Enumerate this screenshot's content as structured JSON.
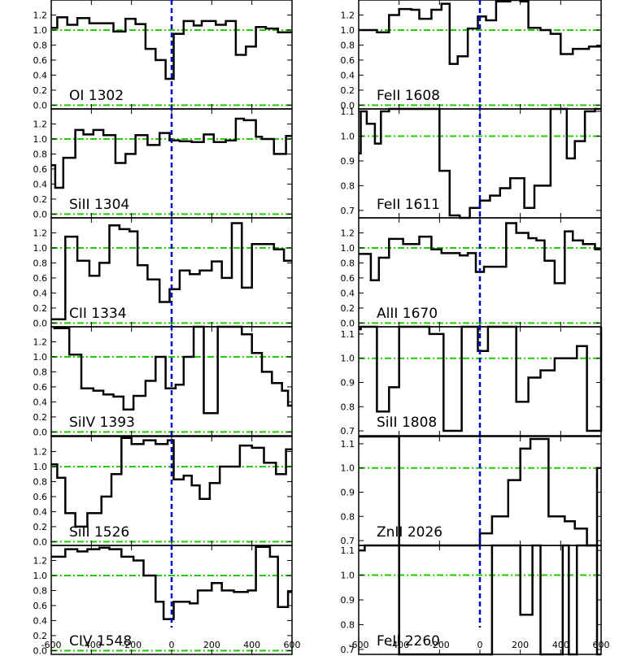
{
  "chart_data": {
    "type": "line",
    "x_tick_labels": [
      "-600",
      "-400",
      "-200",
      "0",
      "200",
      "400",
      "600"
    ],
    "xlim": [
      -600,
      600
    ],
    "x_ticks": [
      -600,
      -400,
      -200,
      0,
      200,
      400,
      600
    ],
    "continuum_level": 1.0,
    "zero_velocity": 0,
    "colors": {
      "spectrum": "#000000",
      "continuum": "#22cc00",
      "zero_velocity": "#0000cc"
    },
    "panels": [
      {
        "label": "OI 1302",
        "column": 0,
        "ylim": [
          -0.05,
          1.4
        ],
        "y_ticks": [
          0.0,
          0.2,
          0.4,
          0.6,
          0.8,
          1.0,
          1.2
        ],
        "y_tick_labels": [
          "0.0",
          "0.2",
          "0.4",
          "0.6",
          "0.8",
          "1.0",
          "1.2"
        ],
        "guides": [
          0.0,
          1.0
        ],
        "x": [
          -600,
          -570,
          -520,
          -470,
          -410,
          -340,
          -290,
          -230,
          -180,
          -130,
          -80,
          -30,
          10,
          60,
          110,
          150,
          220,
          270,
          320,
          370,
          420,
          470,
          530,
          580
        ],
        "y": [
          1.03,
          1.17,
          1.07,
          1.16,
          1.09,
          1.09,
          0.98,
          1.15,
          1.08,
          0.75,
          0.6,
          0.35,
          0.95,
          1.12,
          1.06,
          1.12,
          1.07,
          1.12,
          0.67,
          0.78,
          1.04,
          1.02,
          0.97,
          0.97
        ]
      },
      {
        "label": "SiII 1304",
        "column": 0,
        "ylim": [
          -0.05,
          1.4
        ],
        "y_ticks": [
          0.0,
          0.2,
          0.4,
          0.6,
          0.8,
          1.0,
          1.2
        ],
        "y_tick_labels": [
          "0.0",
          "0.2",
          "0.4",
          "0.6",
          "0.8",
          "1.0",
          "1.2"
        ],
        "guides": [
          0.0,
          1.0
        ],
        "x": [
          -600,
          -580,
          -540,
          -480,
          -440,
          -390,
          -340,
          -280,
          -230,
          -180,
          -120,
          -60,
          -10,
          40,
          100,
          160,
          210,
          270,
          320,
          360,
          420,
          450,
          510,
          570
        ],
        "y": [
          0.65,
          0.35,
          0.75,
          1.12,
          1.06,
          1.12,
          1.05,
          0.68,
          0.8,
          1.05,
          0.92,
          1.08,
          0.98,
          0.97,
          0.96,
          1.06,
          0.96,
          0.98,
          1.27,
          1.25,
          1.03,
          1.0,
          0.8,
          1.04
        ]
      },
      {
        "label": "CII 1334",
        "column": 0,
        "ylim": [
          -0.05,
          1.4
        ],
        "y_ticks": [
          0.0,
          0.2,
          0.4,
          0.6,
          0.8,
          1.0,
          1.2
        ],
        "y_tick_labels": [
          "0.0",
          "0.2",
          "0.4",
          "0.6",
          "0.8",
          "1.0",
          "1.2"
        ],
        "guides": [
          0.0,
          1.0
        ],
        "x": [
          -600,
          -530,
          -470,
          -410,
          -360,
          -310,
          -260,
          -210,
          -170,
          -120,
          -60,
          -10,
          40,
          90,
          140,
          200,
          250,
          300,
          350,
          400,
          460,
          510,
          560
        ],
        "y": [
          0.05,
          1.15,
          0.83,
          0.63,
          0.8,
          1.3,
          1.25,
          1.22,
          0.77,
          0.58,
          0.28,
          0.45,
          0.7,
          0.65,
          0.7,
          0.82,
          0.6,
          1.33,
          0.47,
          1.05,
          1.05,
          0.98,
          0.83
        ]
      },
      {
        "label": "SiIV 1393",
        "column": 0,
        "ylim": [
          -0.05,
          1.4
        ],
        "y_ticks": [
          0.0,
          0.2,
          0.4,
          0.6,
          0.8,
          1.0,
          1.2
        ],
        "y_tick_labels": [
          "0.0",
          "0.2",
          "0.4",
          "0.6",
          "0.8",
          "1.0",
          "1.2"
        ],
        "guides": [
          0.0,
          1.0
        ],
        "x": [
          -590,
          -510,
          -450,
          -390,
          -340,
          -290,
          -240,
          -190,
          -130,
          -80,
          -30,
          20,
          60,
          110,
          160,
          230,
          300,
          350,
          400,
          450,
          500,
          550,
          580
        ],
        "y": [
          1.38,
          1.03,
          0.58,
          0.55,
          0.5,
          0.47,
          0.3,
          0.48,
          0.68,
          1.0,
          0.58,
          0.63,
          1.0,
          1.4,
          0.25,
          1.4,
          1.4,
          1.3,
          1.05,
          0.8,
          0.65,
          0.55,
          0.35
        ]
      },
      {
        "label": "SiII 1526",
        "column": 0,
        "ylim": [
          -0.05,
          1.4
        ],
        "y_ticks": [
          0.0,
          0.2,
          0.4,
          0.6,
          0.8,
          1.0,
          1.2
        ],
        "y_tick_labels": [
          "0.0",
          "0.2",
          "0.4",
          "0.6",
          "0.8",
          "1.0",
          "1.2"
        ],
        "guides": [
          0.0,
          1.0
        ],
        "x": [
          -600,
          -570,
          -530,
          -480,
          -420,
          -350,
          -300,
          -250,
          -200,
          -140,
          -80,
          -20,
          10,
          60,
          100,
          140,
          190,
          240,
          290,
          340,
          400,
          460,
          520,
          570
        ],
        "y": [
          1.03,
          0.85,
          0.38,
          0.2,
          0.38,
          0.6,
          0.9,
          1.38,
          1.3,
          1.35,
          1.3,
          1.35,
          0.83,
          0.88,
          0.75,
          0.57,
          0.78,
          1.0,
          1.0,
          1.28,
          1.25,
          1.05,
          0.9,
          1.23
        ]
      },
      {
        "label": "CIV 1548",
        "column": 0,
        "ylim": [
          -0.05,
          1.4
        ],
        "y_ticks": [
          0.0,
          0.2,
          0.4,
          0.6,
          0.8,
          1.0,
          1.2
        ],
        "y_tick_labels": [
          "0.0",
          "0.2",
          "0.4",
          "0.6",
          "0.8",
          "1.0",
          "1.2"
        ],
        "guides": [
          0.0,
          1.0
        ],
        "x": [
          -600,
          -530,
          -470,
          -420,
          -360,
          -310,
          -250,
          -190,
          -140,
          -80,
          -40,
          10,
          90,
          130,
          200,
          250,
          310,
          380,
          420,
          490,
          530,
          580
        ],
        "y": [
          1.25,
          1.35,
          1.32,
          1.35,
          1.37,
          1.35,
          1.25,
          1.2,
          1.0,
          0.65,
          0.42,
          0.65,
          0.63,
          0.8,
          0.9,
          0.8,
          0.78,
          0.8,
          1.38,
          1.25,
          0.58,
          0.78
        ]
      },
      {
        "label": "FeII 1608",
        "column": 1,
        "ylim": [
          -0.05,
          1.4
        ],
        "y_ticks": [
          0.0,
          0.2,
          0.4,
          0.6,
          0.8,
          1.0,
          1.2
        ],
        "y_tick_labels": [
          "0.0",
          "0.2",
          "0.4",
          "0.6",
          "0.8",
          "1.0",
          "1.2"
        ],
        "guides": [
          0.0,
          1.0
        ],
        "x": [
          -600,
          -510,
          -450,
          -400,
          -340,
          -300,
          -240,
          -190,
          -150,
          -110,
          -60,
          -10,
          30,
          80,
          150,
          200,
          240,
          300,
          350,
          400,
          460,
          540
        ],
        "y": [
          1.0,
          0.97,
          1.2,
          1.28,
          1.27,
          1.15,
          1.27,
          1.35,
          0.55,
          0.65,
          1.02,
          1.18,
          1.13,
          1.38,
          1.42,
          1.38,
          1.03,
          1.0,
          0.95,
          0.68,
          0.75,
          0.78
        ]
      },
      {
        "label": "FeII 1611",
        "column": 1,
        "ylim": [
          0.67,
          1.11
        ],
        "y_ticks": [
          0.7,
          0.8,
          0.9,
          1.0,
          1.1
        ],
        "y_tick_labels": [
          "0.7",
          "0.8",
          "0.9",
          "1.0",
          "1.1"
        ],
        "guides": [
          1.0
        ],
        "x": [
          -600,
          -590,
          -560,
          -520,
          -490,
          -450,
          -400,
          -350,
          -200,
          -150,
          -100,
          -50,
          0,
          50,
          100,
          150,
          220,
          270,
          350,
          400,
          430,
          470,
          520,
          570
        ],
        "y": [
          0.93,
          1.1,
          1.05,
          0.97,
          1.1,
          1.12,
          1.14,
          1.14,
          0.86,
          0.68,
          0.67,
          0.71,
          0.74,
          0.76,
          0.79,
          0.83,
          0.71,
          0.8,
          1.11,
          1.14,
          0.91,
          0.98,
          1.1,
          1.14
        ]
      },
      {
        "label": "AlII 1670",
        "column": 1,
        "ylim": [
          -0.05,
          1.4
        ],
        "y_ticks": [
          0.0,
          0.2,
          0.4,
          0.6,
          0.8,
          1.0,
          1.2
        ],
        "y_tick_labels": [
          "0.0",
          "0.2",
          "0.4",
          "0.6",
          "0.8",
          "1.0",
          "1.2"
        ],
        "guides": [
          0.0,
          1.0
        ],
        "x": [
          -600,
          -540,
          -500,
          -450,
          -380,
          -300,
          -240,
          -190,
          -100,
          -60,
          -20,
          20,
          70,
          130,
          180,
          240,
          280,
          320,
          370,
          420,
          460,
          510,
          570
        ],
        "y": [
          0.92,
          0.57,
          0.87,
          1.12,
          1.05,
          1.15,
          0.98,
          0.93,
          0.9,
          0.93,
          0.68,
          0.75,
          0.75,
          1.33,
          1.2,
          1.13,
          1.1,
          0.83,
          0.53,
          1.22,
          1.1,
          1.05,
          0.98
        ]
      },
      {
        "label": "SiII 1808",
        "column": 1,
        "ylim": [
          0.68,
          1.13
        ],
        "y_ticks": [
          0.7,
          0.8,
          0.9,
          1.0,
          1.1
        ],
        "y_tick_labels": [
          "0.7",
          "0.8",
          "0.9",
          "1.0",
          "1.1"
        ],
        "guides": [
          1.0
        ],
        "x": [
          -600,
          -590,
          -510,
          -450,
          -400,
          -250,
          -180,
          -110,
          -90,
          -50,
          -10,
          40,
          70,
          180,
          240,
          300,
          370,
          480,
          530,
          600
        ],
        "y": [
          1.12,
          1.15,
          0.78,
          0.88,
          1.15,
          1.1,
          0.7,
          0.7,
          1.15,
          1.15,
          1.03,
          1.15,
          1.15,
          0.82,
          0.92,
          0.95,
          1.0,
          1.05,
          0.7,
          1.13
        ]
      },
      {
        "label": "ZnII 2026",
        "column": 1,
        "ylim": [
          0.68,
          1.13
        ],
        "y_ticks": [
          0.7,
          0.8,
          0.9,
          1.0,
          1.1
        ],
        "y_tick_labels": [
          "0.7",
          "0.8",
          "0.9",
          "1.0",
          "1.1"
        ],
        "guides": [
          1.0
        ],
        "x": [
          -600,
          -400,
          0,
          60,
          140,
          200,
          250,
          340,
          420,
          470,
          530,
          580
        ],
        "y": [
          1.15,
          0.6,
          0.73,
          0.8,
          0.95,
          1.08,
          1.12,
          0.8,
          0.78,
          0.75,
          0.6,
          1.0
        ]
      },
      {
        "label": "FeII 2260",
        "column": 1,
        "ylim": [
          0.68,
          1.12
        ],
        "y_ticks": [
          0.7,
          0.8,
          0.9,
          1.0,
          1.1
        ],
        "y_tick_labels": [
          "0.7",
          "0.8",
          "0.9",
          "1.0",
          "1.1"
        ],
        "guides": [
          1.0
        ],
        "x": [
          -600,
          -570,
          -400,
          60,
          200,
          260,
          300,
          410,
          440,
          480,
          530,
          580
        ],
        "y": [
          1.1,
          1.12,
          0.6,
          1.15,
          0.84,
          1.15,
          0.6,
          1.15,
          0.6,
          1.15,
          1.15,
          0.6
        ]
      }
    ]
  }
}
